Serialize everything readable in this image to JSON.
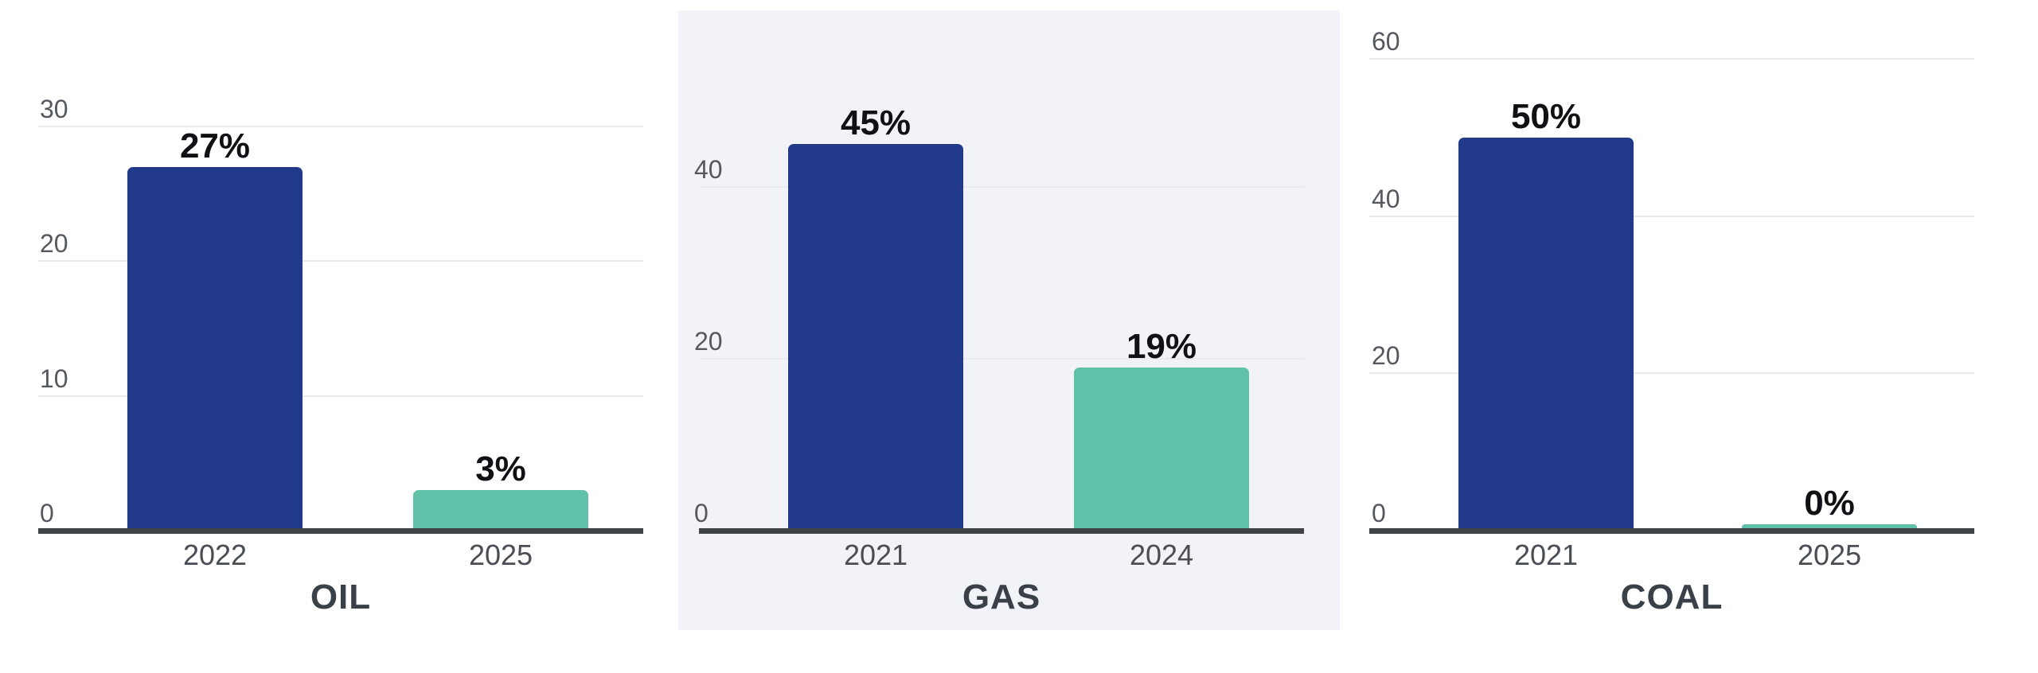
{
  "page": {
    "description": "Three small-multiple bar charts comparing fossil fuel percentages across years",
    "background": "#ffffff"
  },
  "colors": {
    "bar_earlier_year": "#20398b",
    "bar_later_year": "#5ec1a8",
    "axis_line": "#3f4347",
    "gridline": "#e9e9ee",
    "highlight_panel_bg": "#f2f3f8",
    "plain_panel_bg": "#ffffff",
    "tick_label": "#55585e",
    "category_label": "#4a4e54",
    "title": "#3a4047",
    "value_label": "#101114"
  },
  "chart_data": [
    {
      "type": "bar",
      "title": "OIL",
      "categories": [
        "2022",
        "2025"
      ],
      "values": [
        27,
        3
      ],
      "value_labels": [
        "27%",
        "3%"
      ],
      "unit": "percent",
      "yticks": [
        0,
        10,
        20,
        30
      ],
      "ylim": [
        0,
        32
      ],
      "grid": true,
      "legend": false,
      "bar_colors": [
        "#20398b",
        "#5ec1a8"
      ],
      "panel_bg": "#ffffff"
    },
    {
      "type": "bar",
      "title": "GAS",
      "categories": [
        "2021",
        "2024"
      ],
      "values": [
        45,
        19
      ],
      "value_labels": [
        "45%",
        "19%"
      ],
      "unit": "percent",
      "yticks": [
        0,
        20,
        40
      ],
      "ylim": [
        0,
        54
      ],
      "grid": true,
      "legend": false,
      "bar_colors": [
        "#20398b",
        "#5ec1a8"
      ],
      "panel_bg": "#f2f3f8"
    },
    {
      "type": "bar",
      "title": "COAL",
      "categories": [
        "2021",
        "2025"
      ],
      "values": [
        50,
        0
      ],
      "value_labels": [
        "50%",
        "0%"
      ],
      "unit": "percent",
      "yticks": [
        0,
        20,
        40,
        60
      ],
      "ylim": [
        0,
        60
      ],
      "grid": true,
      "legend": false,
      "bar_colors": [
        "#20398b",
        "#5ec1a8"
      ],
      "panel_bg": "#ffffff"
    }
  ]
}
